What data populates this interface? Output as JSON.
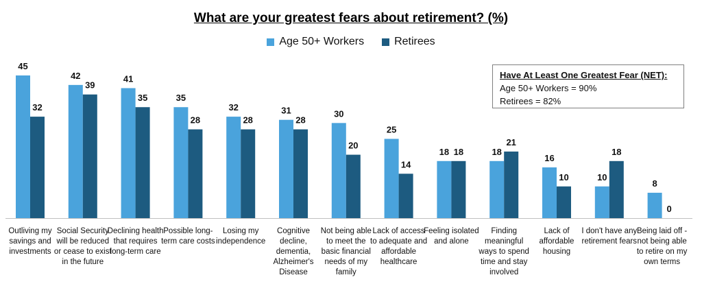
{
  "colors": {
    "workers": "#4aa3dc",
    "retirees": "#1d5b80",
    "axis": "#bfbfbf"
  },
  "chart_data": {
    "type": "bar",
    "title": "What are your greatest fears about retirement? (%)",
    "legend_placement": "top-center",
    "grid": false,
    "ylim": [
      0,
      45
    ],
    "categories": [
      "Outliving my savings and investments",
      "Social Security will be reduced or cease to exist in the future",
      "Declining health that requires long-term care",
      "Possible long-term care costs",
      "Losing my independence",
      "Cognitive decline, dementia, Alzheimer's Disease",
      "Not being able to meet the basic financial needs of my family",
      "Lack of access to adequate and affordable healthcare",
      "Feeling isolated and alone",
      "Finding meaningful ways to spend time and stay involved",
      "Lack of affordable housing",
      "I don't have any retirement fears",
      "Being laid off - not being able to retire on my own terms"
    ],
    "series": [
      {
        "name": "Age 50+ Workers",
        "values": [
          45,
          42,
          41,
          35,
          32,
          31,
          30,
          25,
          18,
          18,
          16,
          10,
          8
        ]
      },
      {
        "name": "Retirees",
        "values": [
          32,
          39,
          35,
          28,
          28,
          28,
          20,
          14,
          18,
          21,
          10,
          18,
          0
        ]
      }
    ],
    "annotation": {
      "title": "Have At Least One Greatest Fear (NET):",
      "lines": [
        "Age 50+ Workers = 90%",
        "Retirees = 82%"
      ]
    }
  }
}
